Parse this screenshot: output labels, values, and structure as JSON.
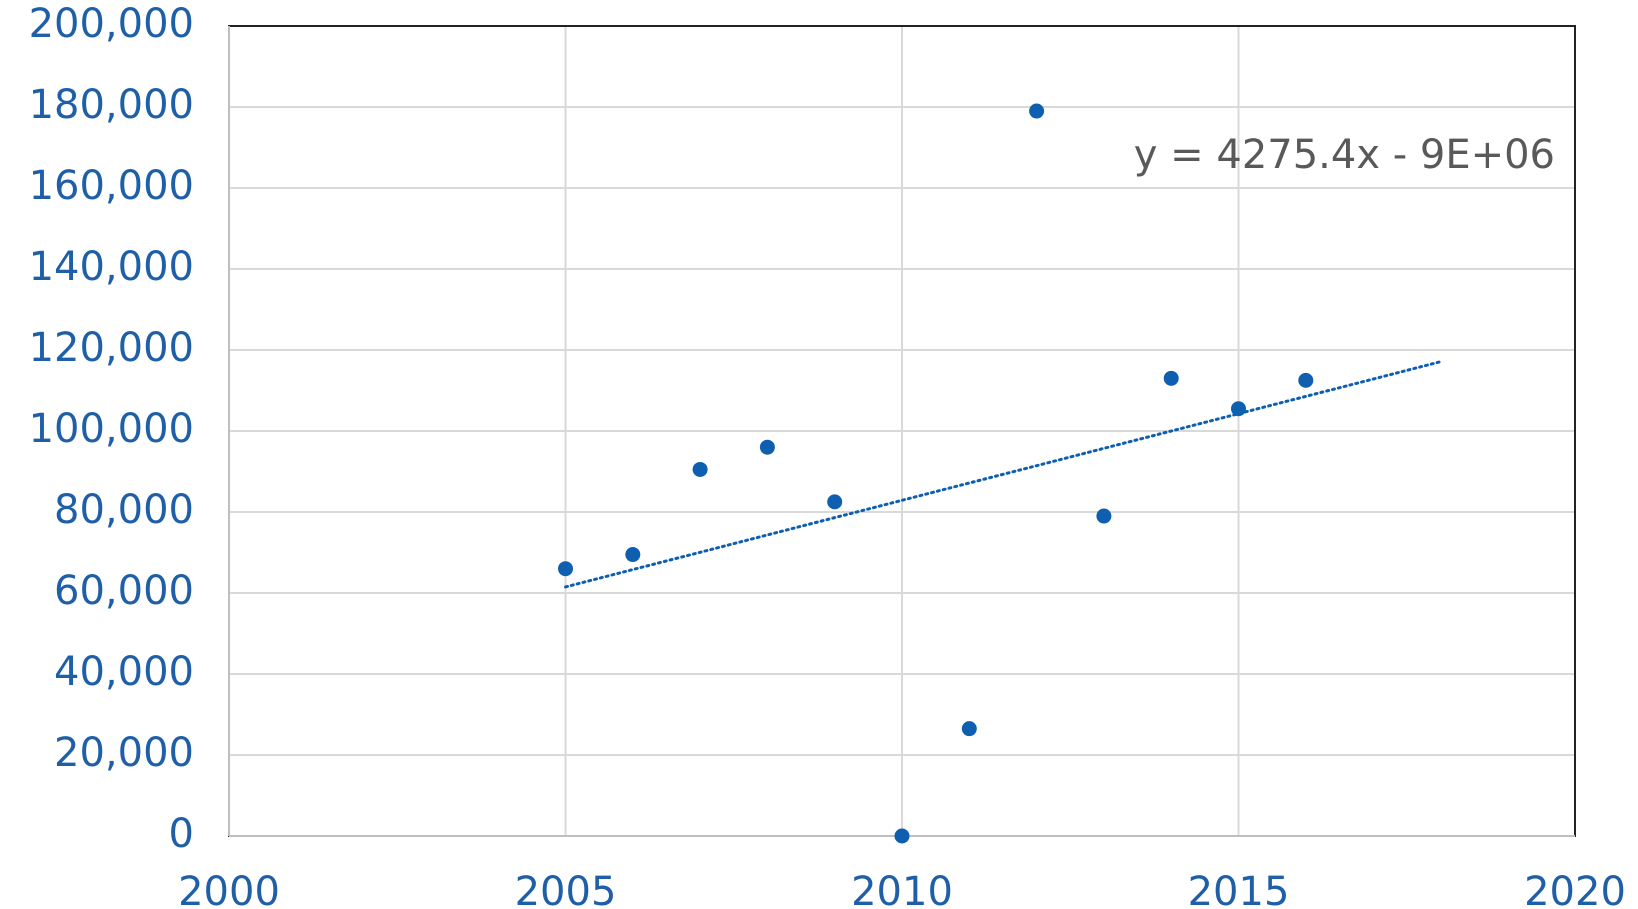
{
  "chart_data": {
    "type": "scatter",
    "x": [
      2005,
      2006,
      2007,
      2008,
      2009,
      2010,
      2011,
      2012,
      2013,
      2014,
      2015,
      2016
    ],
    "values": [
      66000,
      69500,
      90500,
      96000,
      82500,
      0,
      26500,
      179000,
      79000,
      113000,
      105500,
      112500
    ],
    "color": "#0f5fb0",
    "trendline": {
      "label": "y = 4275.4x - 9E+06",
      "x": [
        2005,
        2018
      ],
      "values": [
        61500,
        117100
      ],
      "color": "#0f5fb0"
    },
    "xlim": [
      2000,
      2020
    ],
    "xticks": [
      2000,
      2005,
      2010,
      2015,
      2020
    ],
    "ylim": [
      0,
      200000
    ],
    "yticks": [
      0,
      {
        "value": 20000,
        "label": "20,000"
      },
      {
        "value": 40000,
        "label": "40,000"
      },
      {
        "value": 60000,
        "label": "60,000"
      },
      {
        "value": 80000,
        "label": "80,000"
      },
      {
        "value": 100000,
        "label": "100,000"
      },
      {
        "value": 120000,
        "label": "120,000"
      },
      {
        "value": 140000,
        "label": "140,000"
      },
      {
        "value": 160000,
        "label": "160,000"
      },
      {
        "value": 180000,
        "label": "180,000"
      },
      {
        "value": 200000,
        "label": "200,000"
      }
    ],
    "grid": true
  }
}
